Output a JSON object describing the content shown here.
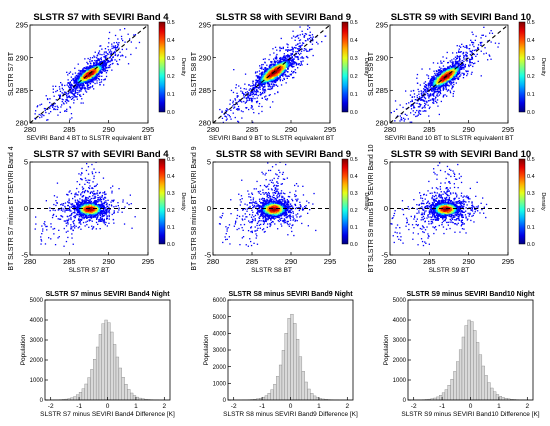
{
  "chart_data": [
    {
      "type": "scatter",
      "title": "SLSTR S7 with SEVIRI Band 4",
      "xlabel": "SEVIRI Band 4 BT to SLSTR equivalent BT",
      "ylabel": "SLSTR S7 BT",
      "xlim": [
        280,
        295
      ],
      "ylim": [
        280,
        295
      ],
      "xticks": [
        "280",
        "285",
        "290",
        "295"
      ],
      "yticks": [
        "280",
        "285",
        "290",
        "295"
      ],
      "reference_line": "y = x (dashed)",
      "density_center": [
        287.5,
        287.6
      ],
      "spread": [
        1.0,
        0.8
      ],
      "colorbar": {
        "label": "Density",
        "range": [
          0,
          0.5
        ],
        "ticks": [
          "0.0",
          "0.1",
          "0.2",
          "0.3",
          "0.4",
          "0.5"
        ],
        "colormap": "jet"
      }
    },
    {
      "type": "scatter",
      "title": "SLSTR S8 with SEVIRI Band 9",
      "xlabel": "SEVIRI Band 9 BT to SLSTR equivalent BT",
      "ylabel": "SLSTR S8 BT",
      "xlim": [
        280,
        295
      ],
      "ylim": [
        280,
        295
      ],
      "xticks": [
        "280",
        "285",
        "290",
        "295"
      ],
      "yticks": [
        "280",
        "285",
        "290",
        "295"
      ],
      "reference_line": "y = x (dashed)",
      "density_center": [
        287.8,
        287.9
      ],
      "spread": [
        1.2,
        1.0
      ],
      "colorbar": {
        "label": "Density",
        "range": [
          0,
          0.5
        ],
        "ticks": [
          "0.0",
          "0.1",
          "0.2",
          "0.3",
          "0.4",
          "0.5"
        ],
        "colormap": "jet"
      }
    },
    {
      "type": "scatter",
      "title": "SLSTR S9 with SEVIRI Band 10",
      "xlabel": "SEVIRI Band 10 BT to SLSTR equivalent BT",
      "ylabel": "SLSTR S9 BT",
      "xlim": [
        280,
        295
      ],
      "ylim": [
        280,
        295
      ],
      "xticks": [
        "280",
        "285",
        "290",
        "295"
      ],
      "yticks": [
        "280",
        "285",
        "290",
        "295"
      ],
      "reference_line": "y = x (dashed)",
      "density_center": [
        287.0,
        287.2
      ],
      "spread": [
        1.1,
        0.9
      ],
      "colorbar": {
        "label": "Density",
        "range": [
          0,
          0.5
        ],
        "ticks": [
          "0.0",
          "0.1",
          "0.2",
          "0.3",
          "0.4",
          "0.5"
        ],
        "colormap": "jet"
      }
    },
    {
      "type": "scatter",
      "title": "SLSTR S7 with SEVIRI Band 4",
      "xlabel": "SLSTR S7 BT",
      "ylabel": "BT SLSTR S7 minus BT SEVIRI Band 4",
      "xlim": [
        280,
        295
      ],
      "ylim": [
        -5,
        5
      ],
      "xticks": [
        "280",
        "285",
        "290",
        "295"
      ],
      "yticks": [
        "-5",
        "0",
        "5"
      ],
      "reference_line": "y = 0 (dashed)",
      "density_center": [
        287.5,
        0.0
      ],
      "spread": [
        0.9,
        0.45
      ],
      "colorbar": {
        "label": "Density",
        "range": [
          0,
          0.5
        ],
        "ticks": [
          "0.0",
          "0.1",
          "0.2",
          "0.3",
          "0.4",
          "0.5"
        ],
        "colormap": "jet"
      }
    },
    {
      "type": "scatter",
      "title": "SLSTR S8 with SEVIRI Band 9",
      "xlabel": "SLSTR S8 BT",
      "ylabel": "BT SLSTR S8 minus BT SEVIRI Band 9",
      "xlim": [
        280,
        295
      ],
      "ylim": [
        -5,
        5
      ],
      "xticks": [
        "280",
        "285",
        "290",
        "295"
      ],
      "yticks": [
        "-5",
        "0",
        "5"
      ],
      "reference_line": "y = 0 (dashed)",
      "density_center": [
        287.7,
        0.0
      ],
      "spread": [
        0.9,
        0.5
      ],
      "colorbar": {
        "label": "Density",
        "range": [
          0,
          0.5
        ],
        "ticks": [
          "0.0",
          "0.1",
          "0.2",
          "0.3",
          "0.4",
          "0.5"
        ],
        "colormap": "jet"
      }
    },
    {
      "type": "scatter",
      "title": "SLSTR S9 with SEVIRI Band 10",
      "xlabel": "SLSTR S9 BT",
      "ylabel": "BT SLSTR S9 minus BT SEVIRI Band 10",
      "xlim": [
        280,
        295
      ],
      "ylim": [
        -5,
        5
      ],
      "xticks": [
        "280",
        "285",
        "290",
        "295"
      ],
      "yticks": [
        "-5",
        "0",
        "5"
      ],
      "reference_line": "y = 0 (dashed)",
      "density_center": [
        287.0,
        0.0
      ],
      "spread": [
        0.9,
        0.45
      ],
      "colorbar": {
        "label": "Density",
        "range": [
          0,
          0.5
        ],
        "ticks": [
          "0.0",
          "0.1",
          "0.2",
          "0.3",
          "0.4",
          "0.5"
        ],
        "colormap": "jet"
      }
    },
    {
      "type": "bar",
      "title": "SLSTR S7 minus SEVIRI Band4 Night",
      "xlabel": "SLSTR S7 minus SEVIRI Band4 Difference [K]",
      "ylabel": "Population",
      "xlim": [
        -2.2,
        2.2
      ],
      "ylim": [
        0,
        5000
      ],
      "xticks": [
        "-2",
        "-1",
        "0",
        "1",
        "2"
      ],
      "yticks": [
        "0",
        "1000",
        "2000",
        "3000",
        "4000",
        "5000"
      ],
      "bin_width": 0.1,
      "bin_centers": [
        -2.15,
        -2.05,
        -1.95,
        -1.85,
        -1.75,
        -1.65,
        -1.55,
        -1.45,
        -1.35,
        -1.25,
        -1.15,
        -1.05,
        -0.95,
        -0.85,
        -0.75,
        -0.65,
        -0.55,
        -0.45,
        -0.35,
        -0.25,
        -0.15,
        -0.05,
        0.05,
        0.15,
        0.25,
        0.35,
        0.45,
        0.55,
        0.65,
        0.75,
        0.85,
        0.95,
        1.05,
        1.15,
        1.25,
        1.35,
        1.45,
        1.55,
        1.65,
        1.75,
        1.85,
        1.95,
        2.05,
        2.15
      ],
      "values": [
        4,
        5,
        7,
        10,
        14,
        20,
        30,
        45,
        70,
        110,
        170,
        260,
        390,
        560,
        800,
        1120,
        1530,
        2040,
        2650,
        3280,
        3810,
        4000,
        3860,
        3400,
        2780,
        2150,
        1600,
        1140,
        790,
        530,
        350,
        225,
        145,
        95,
        62,
        42,
        28,
        20,
        14,
        10,
        7,
        5,
        4,
        3
      ]
    },
    {
      "type": "bar",
      "title": "SLSTR S8 minus SEVIRI Band9 Night",
      "xlabel": "SLSTR S8 minus SEVIRI Band9 Difference [K]",
      "ylabel": "Population",
      "xlim": [
        -2.2,
        2.2
      ],
      "ylim": [
        0,
        6000
      ],
      "xticks": [
        "-2",
        "-1",
        "0",
        "1",
        "2"
      ],
      "yticks": [
        "0",
        "1000",
        "2000",
        "3000",
        "4000",
        "5000",
        "6000"
      ],
      "bin_width": 0.1,
      "bin_centers": [
        -2.15,
        -2.05,
        -1.95,
        -1.85,
        -1.75,
        -1.65,
        -1.55,
        -1.45,
        -1.35,
        -1.25,
        -1.15,
        -1.05,
        -0.95,
        -0.85,
        -0.75,
        -0.65,
        -0.55,
        -0.45,
        -0.35,
        -0.25,
        -0.15,
        -0.05,
        0.05,
        0.15,
        0.25,
        0.35,
        0.45,
        0.55,
        0.65,
        0.75,
        0.85,
        0.95,
        1.05,
        1.15,
        1.25,
        1.35,
        1.45,
        1.55,
        1.65,
        1.75,
        1.85,
        1.95,
        2.05,
        2.15
      ],
      "values": [
        3,
        4,
        5,
        7,
        9,
        12,
        16,
        22,
        32,
        48,
        72,
        110,
        170,
        260,
        400,
        620,
        950,
        1420,
        2100,
        2980,
        4000,
        4900,
        5150,
        4600,
        3650,
        2600,
        1720,
        1080,
        660,
        400,
        245,
        150,
        95,
        62,
        42,
        30,
        22,
        16,
        12,
        9,
        7,
        5,
        4,
        3
      ]
    },
    {
      "type": "bar",
      "title": "SLSTR S9 minus SEVIRI Band10 Night",
      "xlabel": "SLSTR S9 minus SEVIRI Band10 Difference [K]",
      "ylabel": "Population",
      "xlim": [
        -2.2,
        2.2
      ],
      "ylim": [
        0,
        5000
      ],
      "xticks": [
        "-2",
        "-1",
        "0",
        "1",
        "2"
      ],
      "yticks": [
        "0",
        "1000",
        "2000",
        "3000",
        "4000",
        "5000"
      ],
      "bin_width": 0.1,
      "bin_centers": [
        -2.15,
        -2.05,
        -1.95,
        -1.85,
        -1.75,
        -1.65,
        -1.55,
        -1.45,
        -1.35,
        -1.25,
        -1.15,
        -1.05,
        -0.95,
        -0.85,
        -0.75,
        -0.65,
        -0.55,
        -0.45,
        -0.35,
        -0.25,
        -0.15,
        -0.05,
        0.05,
        0.15,
        0.25,
        0.35,
        0.45,
        0.55,
        0.65,
        0.75,
        0.85,
        0.95,
        1.05,
        1.15,
        1.25,
        1.35,
        1.45,
        1.55,
        1.65,
        1.75,
        1.85,
        1.95,
        2.05,
        2.15
      ],
      "values": [
        4,
        5,
        7,
        10,
        14,
        20,
        29,
        43,
        66,
        100,
        155,
        240,
        360,
        520,
        740,
        1040,
        1430,
        1920,
        2510,
        3150,
        3720,
        4000,
        3920,
        3480,
        2880,
        2260,
        1700,
        1230,
        870,
        600,
        410,
        275,
        185,
        125,
        85,
        58,
        40,
        28,
        20,
        14,
        10,
        7,
        5,
        4
      ]
    }
  ]
}
